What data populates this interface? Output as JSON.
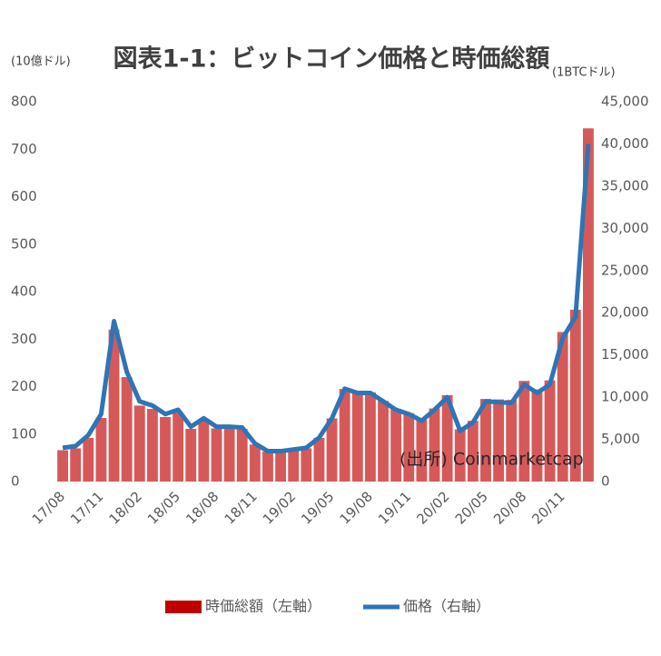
{
  "chart_data": {
    "type": "bar_line",
    "title": "図表1-1：ビットコイン価格と時価総額",
    "y_label": "(10億ドル)",
    "y2_label": "(1BTCドル)",
    "annotation": "(出所) Coinmarketcap",
    "categories": [
      "17/08",
      null,
      null,
      "17/11",
      null,
      null,
      "18/02",
      null,
      null,
      "18/05",
      null,
      null,
      "18/08",
      null,
      null,
      "18/11",
      null,
      null,
      "19/02",
      null,
      null,
      "19/05",
      null,
      null,
      "19/08",
      null,
      null,
      "19/11",
      null,
      null,
      "20/02",
      null,
      null,
      "20/05",
      null,
      null,
      "20/08",
      null,
      null,
      "20/11",
      null,
      null
    ],
    "series": [
      {
        "name": "時価総額（左軸）",
        "color": "#c00000",
        "axis": "y",
        "values": [
          66,
          70,
          92,
          134,
          320,
          220,
          160,
          153,
          136,
          145,
          111,
          128,
          112,
          112,
          111,
          78,
          63,
          63,
          66,
          70,
          92,
          133,
          195,
          187,
          188,
          170,
          153,
          144,
          130,
          154,
          182,
          110,
          128,
          174,
          173,
          172,
          212,
          194,
          213,
          315,
          362,
          744
        ]
      },
      {
        "name": "価格（右軸）",
        "color": "#2e75b6",
        "axis": "y2",
        "values": [
          4000,
          4200,
          5500,
          8000,
          19000,
          13000,
          9500,
          9000,
          8000,
          8500,
          6500,
          7500,
          6500,
          6500,
          6400,
          4500,
          3600,
          3600,
          3800,
          4000,
          5200,
          7500,
          11000,
          10500,
          10500,
          9500,
          8500,
          8000,
          7200,
          8500,
          10000,
          6000,
          7000,
          9500,
          9400,
          9300,
          11500,
          10500,
          11500,
          17000,
          19500,
          40000
        ]
      }
    ],
    "ylim": [
      0,
      800
    ],
    "yticks": [
      0,
      100,
      200,
      300,
      400,
      500,
      600,
      700,
      800
    ],
    "y2lim": [
      0,
      45000
    ],
    "y2ticks": [
      0,
      {
        "value": 5000,
        "label": "5,000"
      },
      {
        "value": 10000,
        "label": "10,000"
      },
      {
        "value": 15000,
        "label": "15,000"
      },
      {
        "value": 20000,
        "label": "20,000"
      },
      {
        "value": 25000,
        "label": "25,000"
      },
      {
        "value": 30000,
        "label": "30,000"
      },
      {
        "value": 35000,
        "label": "35,000"
      },
      {
        "value": 40000,
        "label": "40,000"
      },
      {
        "value": 45000,
        "label": "45,000"
      }
    ],
    "grid": false
  }
}
